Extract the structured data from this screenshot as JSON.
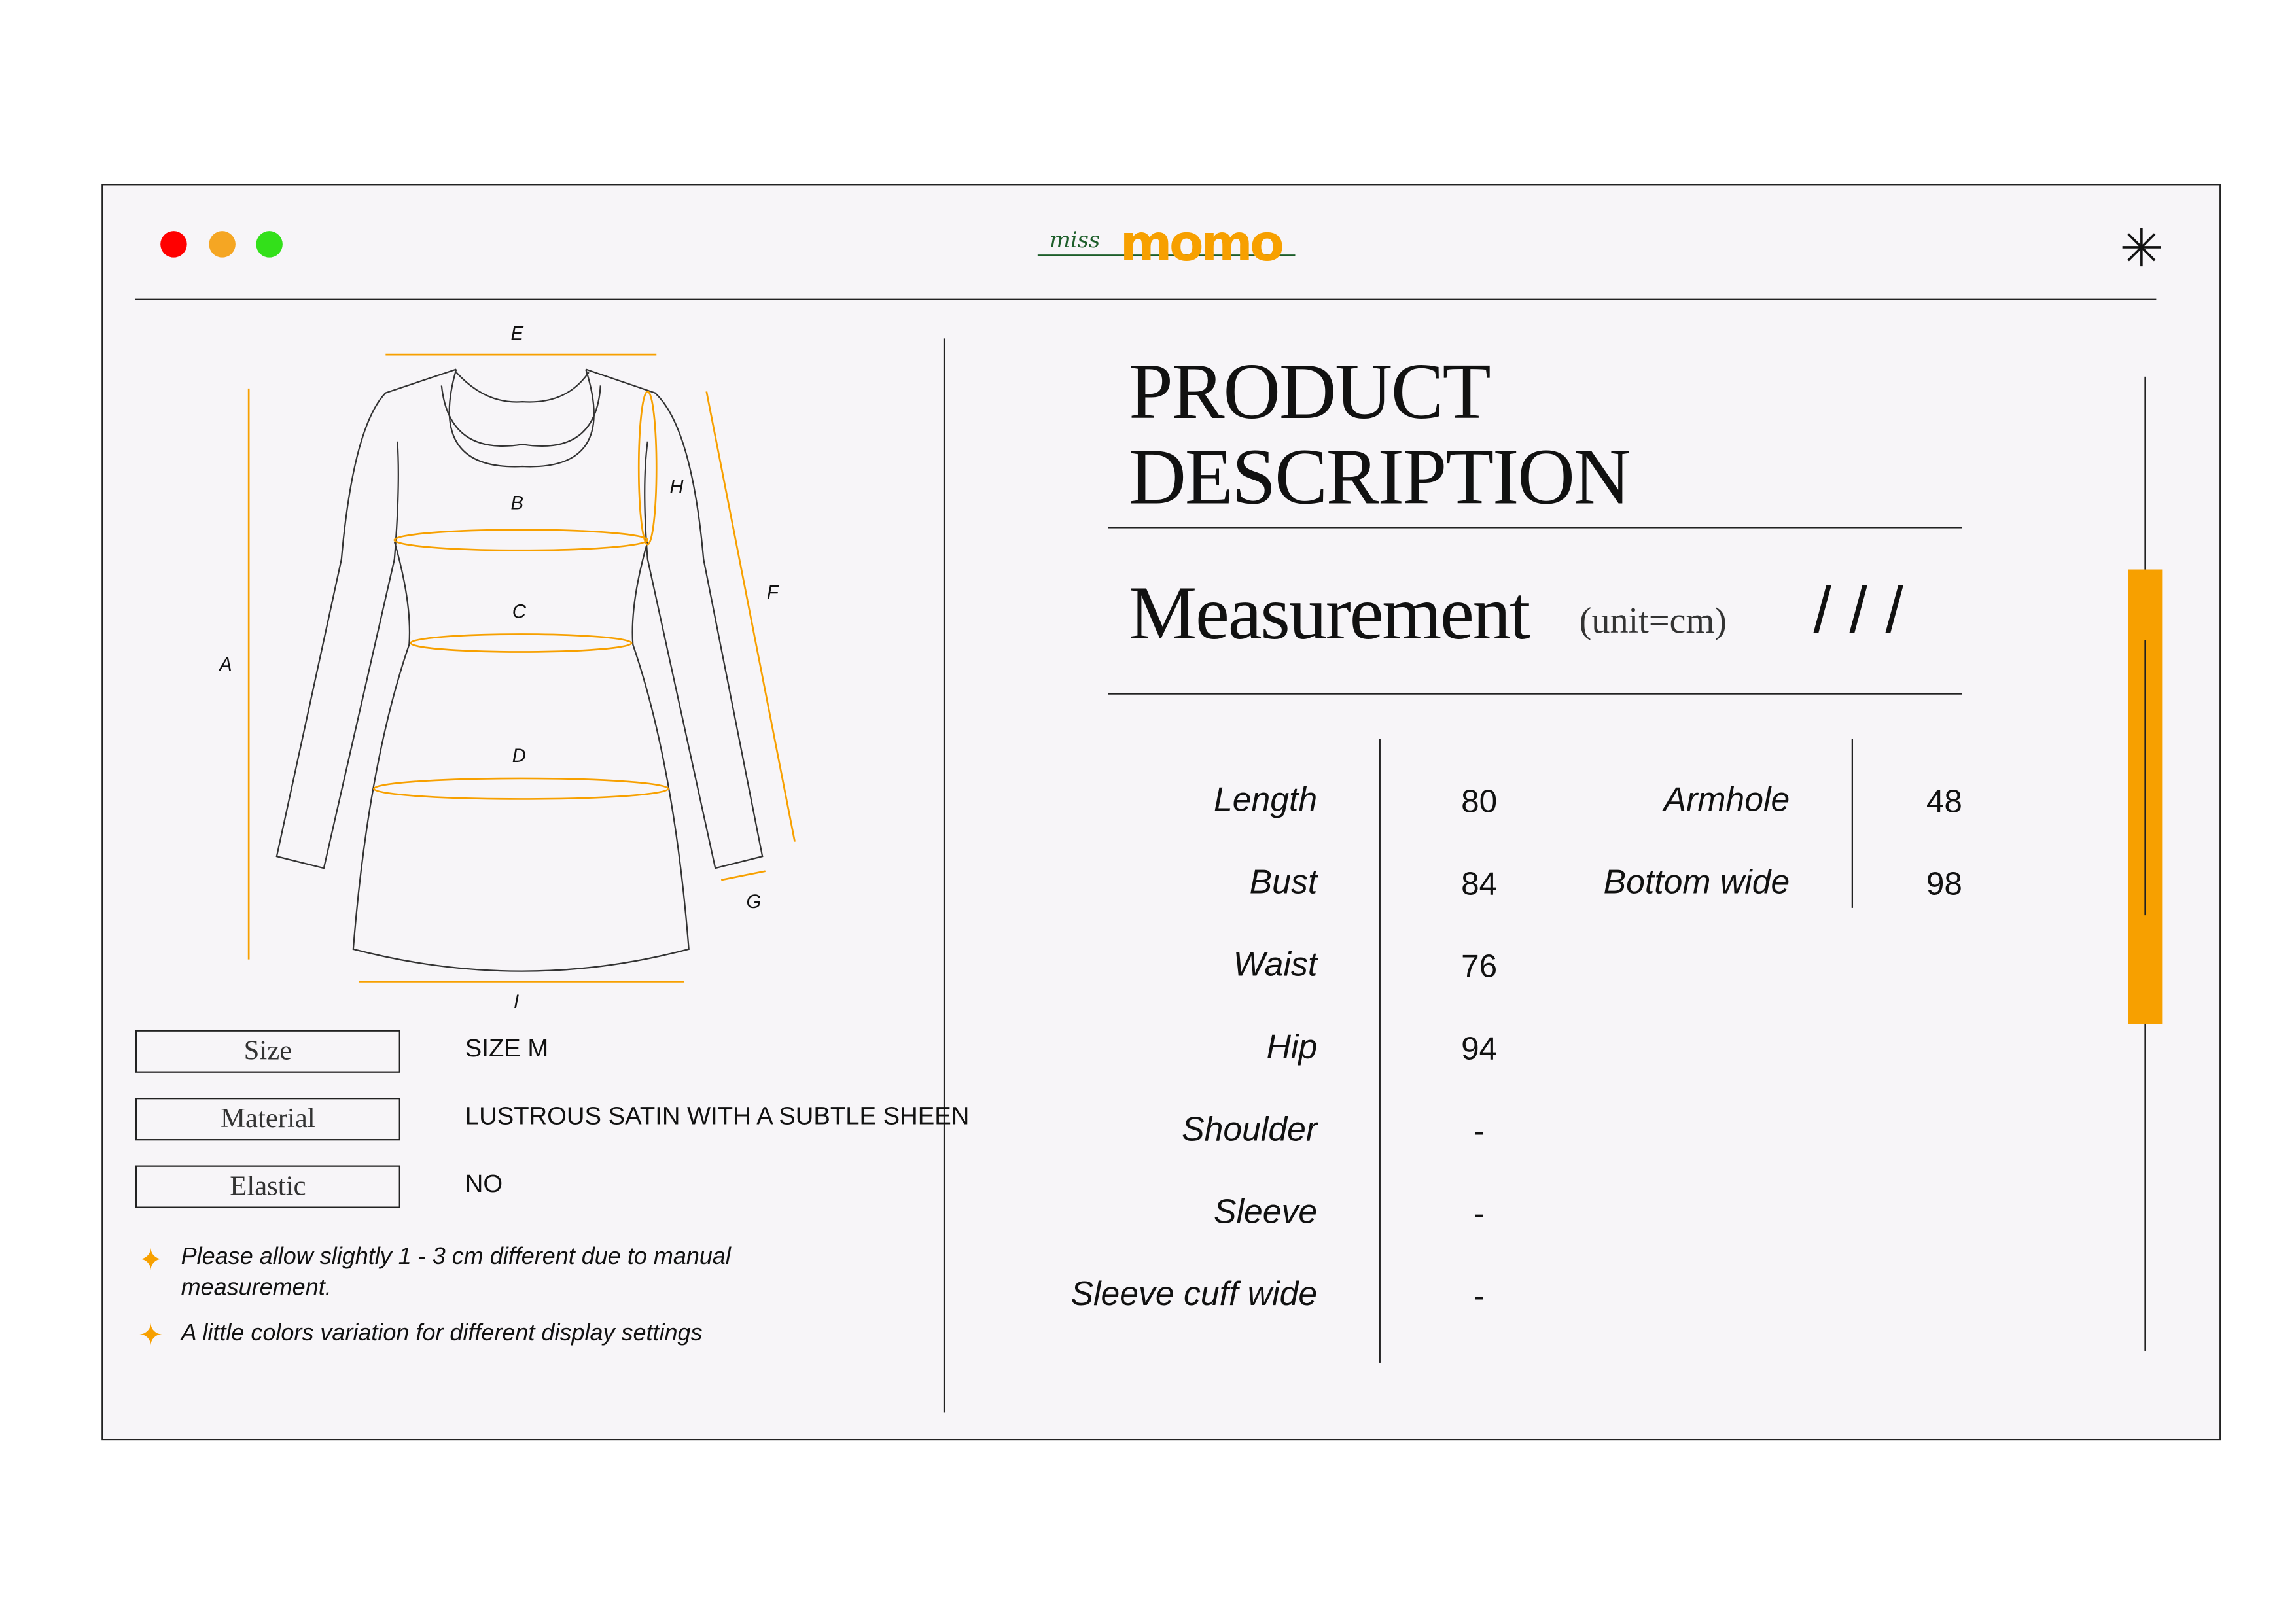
{
  "window": {
    "controls": [
      {
        "name": "close",
        "color": "#ff0000"
      },
      {
        "name": "minimize",
        "color": "#f5a623"
      },
      {
        "name": "maximize",
        "color": "#33e01a"
      }
    ],
    "logo": {
      "text": "momo",
      "script": "miss",
      "color": "#f7a000",
      "script_color": "#1d5e2a"
    },
    "menu_icon": "asterisk-icon"
  },
  "diagram": {
    "labels": [
      "A",
      "B",
      "C",
      "D",
      "E",
      "F",
      "G",
      "H",
      "I"
    ],
    "accent": "#f7a000"
  },
  "specs": [
    {
      "label": "Size",
      "value": "SIZE M"
    },
    {
      "label": "Material",
      "value": "LUSTROUS SATIN WITH A SUBTLE SHEEN"
    },
    {
      "label": "Elastic",
      "value": "NO"
    }
  ],
  "notes": [
    "Please allow slightly 1 - 3 cm different due to manual measurement.",
    "A little colors variation for different display settings"
  ],
  "description": {
    "title_line1": "PRODUCT",
    "title_line2": "DESCRIPTION",
    "measurement_title": "Measurement",
    "unit": "(unit=cm)",
    "decor": "/ / /"
  },
  "measurements_left": [
    {
      "label": "Length",
      "value": "80"
    },
    {
      "label": "Bust",
      "value": "84"
    },
    {
      "label": "Waist",
      "value": "76"
    },
    {
      "label": "Hip",
      "value": "94"
    },
    {
      "label": "Shoulder",
      "value": "-"
    },
    {
      "label": "Sleeve",
      "value": "-"
    },
    {
      "label": "Sleeve cuff wide",
      "value": "-"
    }
  ],
  "measurements_right": [
    {
      "label": "Armhole",
      "value": "48"
    },
    {
      "label": "Bottom wide",
      "value": "98"
    }
  ],
  "scrollbar": {
    "color": "#f7a000"
  }
}
